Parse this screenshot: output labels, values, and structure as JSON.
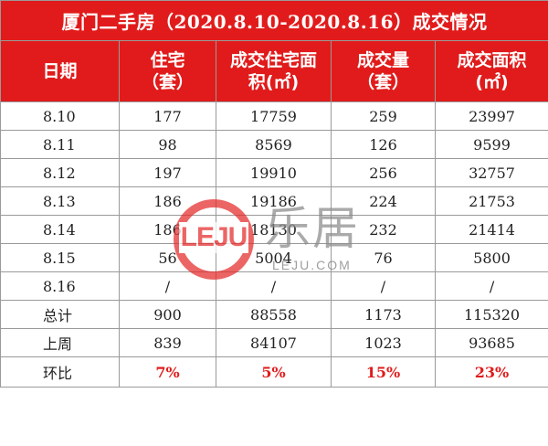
{
  "title": "厦门二手房（2020.8.10-2020.8.16）成交情况",
  "headers": [
    {
      "line1": "日期",
      "line2": ""
    },
    {
      "line1": "住宅",
      "line2": "（套）"
    },
    {
      "line1": "成交住宅面",
      "line2": "积(㎡)"
    },
    {
      "line1": "成交量",
      "line2": "（套）"
    },
    {
      "line1": "成交面积",
      "line2": "(㎡)"
    }
  ],
  "rows": [
    [
      "8.10",
      "177",
      "17759",
      "259",
      "23997"
    ],
    [
      "8.11",
      "98",
      "8569",
      "126",
      "9599"
    ],
    [
      "8.12",
      "197",
      "19910",
      "256",
      "32757"
    ],
    [
      "8.13",
      "186",
      "19186",
      "224",
      "21753"
    ],
    [
      "8.14",
      "186",
      "18130",
      "232",
      "21414"
    ],
    [
      "8.15",
      "56",
      "5004",
      "76",
      "5800"
    ],
    [
      "8.16",
      "/",
      "/",
      "/",
      "/"
    ],
    [
      "总计",
      "900",
      "88558",
      "1173",
      "115320"
    ],
    [
      "上周",
      "839",
      "84107",
      "1023",
      "93685"
    ]
  ],
  "change_row": [
    "环比",
    "7%",
    "5%",
    "15%",
    "23%"
  ],
  "watermark": {
    "logo": "LEJU",
    "cn": "乐居",
    "url": "LEJU.COM"
  },
  "colors": {
    "header_bg": "#e11b1b",
    "accent": "#e11b1b",
    "border": "#9a9a9a"
  }
}
